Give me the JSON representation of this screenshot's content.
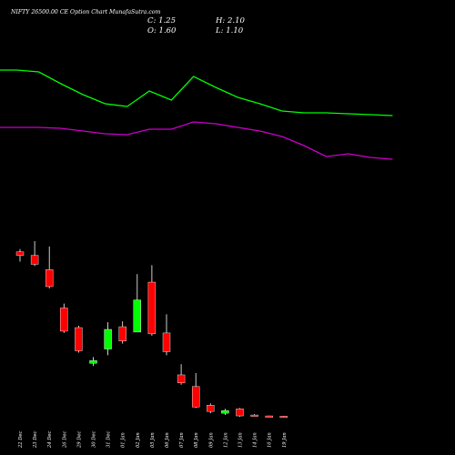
{
  "header": {
    "title": "NIFTY 26500.00 CE Option Chart MunafaSutra.com",
    "open": "O: 1.60",
    "high": "H: 2.10",
    "low": "L: 1.10",
    "close": "C: 1.25"
  },
  "colors": {
    "background": "#000000",
    "up": "#00ff00",
    "down": "#ff0000",
    "upper_line": "#00ff00",
    "lower_line": "#cc00cc",
    "wick": "#ffffff"
  },
  "chart_data": {
    "type": "candlestick",
    "dates": [
      "22 Dec",
      "23 Dec",
      "24 Dec",
      "26 Dec",
      "29 Dec",
      "30 Dec",
      "31 Dec",
      "01 Jan",
      "02 Jan",
      "05 Jan",
      "06 Jan",
      "07 Jan",
      "08 Jan",
      "09 Jan",
      "12 Jan",
      "13 Jan",
      "14 Jan",
      "16 Jan",
      "19 Jan"
    ],
    "candles": [
      {
        "date": "22 Dec",
        "open": 186,
        "high": 189,
        "low": 175,
        "close": 182
      },
      {
        "date": "23 Dec",
        "open": 182,
        "high": 198,
        "low": 170,
        "close": 172
      },
      {
        "date": "24 Dec",
        "open": 166,
        "high": 192,
        "low": 145,
        "close": 147
      },
      {
        "date": "26 Dec",
        "open": 123,
        "high": 128,
        "low": 95,
        "close": 97
      },
      {
        "date": "29 Dec",
        "open": 101,
        "high": 103,
        "low": 73,
        "close": 75
      },
      {
        "date": "30 Dec",
        "open": 61,
        "high": 68,
        "low": 58,
        "close": 64
      },
      {
        "date": "31 Dec",
        "open": 77,
        "high": 107,
        "low": 70,
        "close": 99
      },
      {
        "date": "01 Jan",
        "open": 102,
        "high": 108,
        "low": 83,
        "close": 86
      },
      {
        "date": "02 Jan",
        "open": 96,
        "high": 161,
        "low": 96,
        "close": 132
      },
      {
        "date": "05 Jan",
        "open": 152,
        "high": 171,
        "low": 92,
        "close": 94
      },
      {
        "date": "06 Jan",
        "open": 95,
        "high": 116,
        "low": 70,
        "close": 74
      },
      {
        "date": "07 Jan",
        "open": 48,
        "high": 60,
        "low": 37,
        "close": 39
      },
      {
        "date": "08 Jan",
        "open": 35,
        "high": 50,
        "low": 11,
        "close": 12
      },
      {
        "date": "09 Jan",
        "open": 14,
        "high": 16,
        "low": 5,
        "close": 7
      },
      {
        "date": "12 Jan",
        "open": 5,
        "high": 10,
        "low": 3,
        "close": 8
      },
      {
        "date": "13 Jan",
        "open": 10,
        "high": 11,
        "low": 1,
        "close": 2
      },
      {
        "date": "14 Jan",
        "open": 3,
        "high": 4,
        "low": 2,
        "close": 2.5
      },
      {
        "date": "16 Jan",
        "open": 2,
        "high": 2.3,
        "low": 1.1,
        "close": 1.3
      },
      {
        "date": "19 Jan",
        "open": 1.6,
        "high": 2.1,
        "low": 1.1,
        "close": 1.25
      }
    ],
    "upper_line": [
      195,
      195,
      193,
      180,
      168,
      158,
      155,
      172,
      162,
      188,
      176,
      165,
      158,
      150,
      148,
      148,
      147,
      146,
      145
    ],
    "lower_line": [
      132,
      132,
      132,
      131,
      128,
      125,
      124,
      130,
      130,
      138,
      136,
      132,
      128,
      122,
      112,
      100,
      103,
      99,
      97
    ]
  }
}
